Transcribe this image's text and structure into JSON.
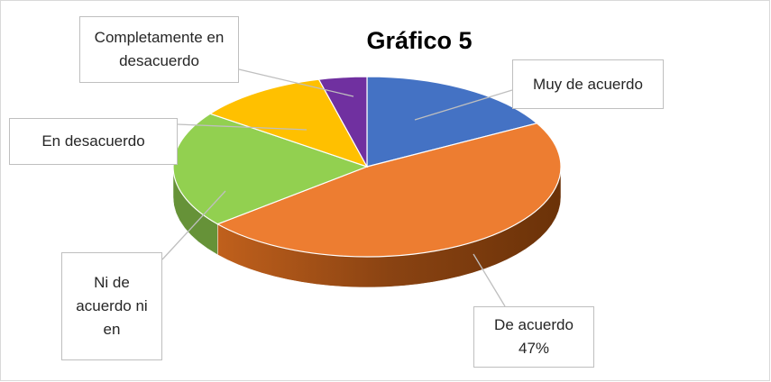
{
  "chart_data": {
    "type": "pie3d",
    "title": "Gráfico 5",
    "categories": [
      "Muy de acuerdo",
      "De acuerdo",
      "Ni de acuerdo ni en",
      "En desacuerdo",
      "Completamente en desacuerdo"
    ],
    "values": [
      17,
      47,
      21,
      11,
      4
    ],
    "value_labels": [
      null,
      "47%",
      null,
      null,
      null
    ],
    "colors": [
      "#4472c4",
      "#ed7d31",
      "#92d050",
      "#ffc000",
      "#7030a0"
    ]
  }
}
